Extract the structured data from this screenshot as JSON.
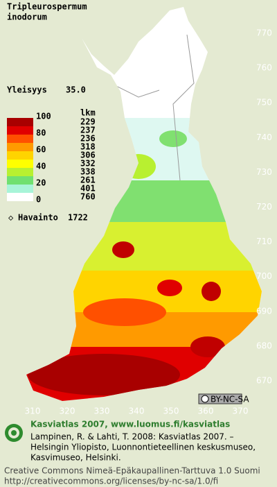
{
  "header": {
    "title_lines": [
      "Tripleurospermum",
      "inodorum"
    ]
  },
  "frequency": {
    "label": "Yleisyys",
    "value": "35.0"
  },
  "legend": {
    "count_header": "lkm",
    "scale_labels": [
      "100",
      "80",
      "60",
      "40",
      "20",
      "0"
    ],
    "counts": [
      229,
      237,
      236,
      318,
      306,
      332,
      338,
      261,
      401,
      760
    ],
    "colors": [
      "#a80000",
      "#e00000",
      "#ff5000",
      "#ff9a00",
      "#ffd400",
      "#ffff00",
      "#b8f030",
      "#70e070",
      "#a8f4d8",
      "#ffffff"
    ]
  },
  "observations": {
    "label": "Havainto",
    "value": 1722
  },
  "grid_labels": {
    "north": [
      770,
      760,
      750,
      740,
      730,
      720,
      710,
      700,
      690,
      680,
      670
    ],
    "east": [
      310,
      320,
      330,
      340,
      350,
      360,
      370
    ]
  },
  "badge": "BY-NC-SA",
  "footer": {
    "headline": "Kasviatlas 2007, www.luomus.fi/kasviatlas",
    "citation": [
      "Lampinen, R. & Lahti, T. 2008: Kasviatlas 2007. –",
      "Helsingin Yliopisto, Luonnontieteellinen keskusmuseo,",
      "Kasvimuseo, Helsinki."
    ],
    "license": [
      "Creative Commons Nimeä-Epäkaupallinen-Tarttuva 1.0 Suomi",
      "http://creativecommons.org/licenses/by-nc-sa/1.0/fi"
    ]
  }
}
